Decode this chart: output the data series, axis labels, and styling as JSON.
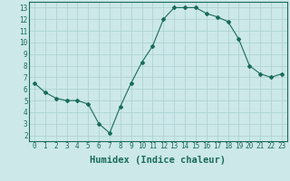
{
  "x": [
    0,
    1,
    2,
    3,
    4,
    5,
    6,
    7,
    8,
    9,
    10,
    11,
    12,
    13,
    14,
    15,
    16,
    17,
    18,
    19,
    20,
    21,
    22,
    23
  ],
  "y": [
    6.5,
    5.7,
    5.2,
    5.0,
    5.0,
    4.7,
    3.0,
    2.2,
    4.5,
    6.5,
    8.3,
    9.7,
    12.0,
    13.0,
    13.0,
    13.0,
    12.5,
    12.2,
    11.8,
    10.3,
    8.0,
    7.3,
    7.0,
    7.3
  ],
  "line_color": "#1a6b5a",
  "marker": "D",
  "marker_size": 2.0,
  "bg_color": "#cce8e8",
  "grid_color": "#aacfcf",
  "xlabel": "Humidex (Indice chaleur)",
  "xlim": [
    -0.5,
    23.5
  ],
  "ylim": [
    1.5,
    13.5
  ],
  "xticks": [
    0,
    1,
    2,
    3,
    4,
    5,
    6,
    7,
    8,
    9,
    10,
    11,
    12,
    13,
    14,
    15,
    16,
    17,
    18,
    19,
    20,
    21,
    22,
    23
  ],
  "yticks": [
    2,
    3,
    4,
    5,
    6,
    7,
    8,
    9,
    10,
    11,
    12,
    13
  ],
  "tick_fontsize": 5.5,
  "xlabel_fontsize": 7.5,
  "axis_color": "#1a6b5a"
}
